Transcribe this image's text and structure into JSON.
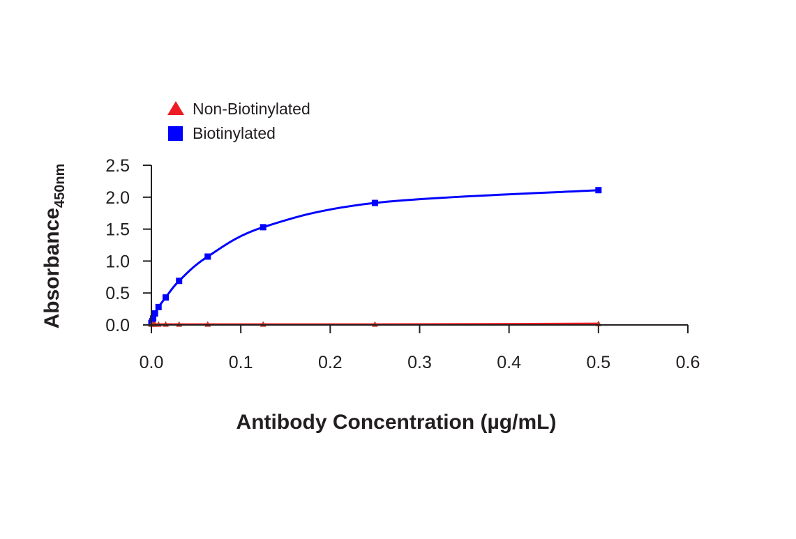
{
  "chart_data": {
    "type": "line",
    "title": "",
    "xlabel": "Antibody Concentration (µg/mL)",
    "ylabel": "Absorbance",
    "ylabel_subscript": "450nm",
    "xlim": [
      0.0,
      0.6
    ],
    "ylim": [
      0.0,
      2.5
    ],
    "x_ticks": [
      0.0,
      0.1,
      0.2,
      0.3,
      0.4,
      0.5,
      0.6
    ],
    "x_tick_labels": [
      "0.0",
      "0.1",
      "0.2",
      "0.3",
      "0.4",
      "0.5",
      "0.6"
    ],
    "y_ticks": [
      0.0,
      0.5,
      1.0,
      1.5,
      2.0,
      2.5
    ],
    "y_tick_labels": [
      "0.0",
      "0.5",
      "1.0",
      "1.5",
      "2.0",
      "2.5"
    ],
    "grid": false,
    "legend_position": "top-left",
    "series": [
      {
        "name": "Non-Biotinylated",
        "marker": "triangle",
        "color": "#ed1c24",
        "x": [
          0.0,
          0.001,
          0.002,
          0.004,
          0.008,
          0.016,
          0.031,
          0.063,
          0.125,
          0.25,
          0.5
        ],
        "y": [
          0.01,
          0.01,
          0.01,
          0.01,
          0.01,
          0.01,
          0.01,
          0.01,
          0.01,
          0.01,
          0.02
        ]
      },
      {
        "name": "Biotinylated",
        "marker": "square",
        "color": "#0000ff",
        "x": [
          0.0,
          0.001,
          0.002,
          0.004,
          0.008,
          0.016,
          0.031,
          0.063,
          0.125,
          0.25,
          0.5
        ],
        "y": [
          0.03,
          0.06,
          0.1,
          0.18,
          0.28,
          0.43,
          0.69,
          1.07,
          1.53,
          1.91,
          2.11
        ]
      }
    ]
  }
}
